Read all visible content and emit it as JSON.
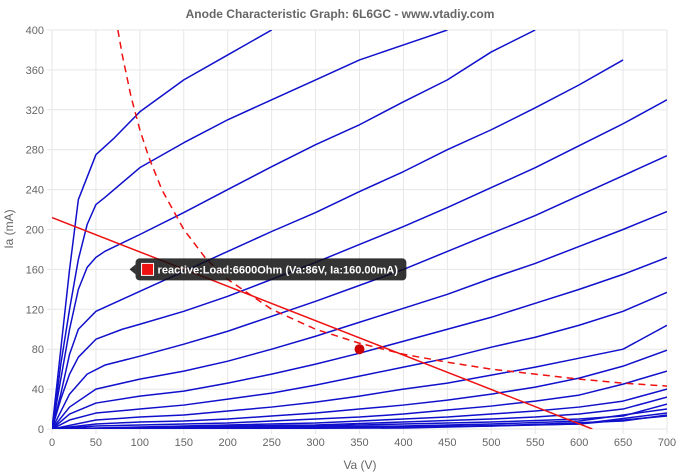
{
  "chart_data": {
    "type": "line",
    "title": "Anode Characteristic Graph: 6L6GC - www.vtadiy.com",
    "xlabel": "Va (V)",
    "ylabel": "Ia (mA)",
    "xlim": [
      0,
      700
    ],
    "ylim": [
      0,
      400
    ],
    "x_ticks": [
      0,
      50,
      100,
      150,
      200,
      250,
      300,
      350,
      400,
      450,
      500,
      550,
      600,
      650,
      700
    ],
    "y_ticks": [
      0,
      40,
      80,
      120,
      160,
      200,
      240,
      280,
      320,
      360,
      400
    ],
    "grid": true,
    "legend": "none",
    "colors": {
      "curves": "#1010cc",
      "load_line": "#ee1111",
      "dissipation": "#ee1111",
      "grid": "#e6e6e6",
      "tooltip_bg": "#111111",
      "marker": "#cc0000"
    },
    "grid_curves": [
      {
        "x": [
          0,
          5,
          10,
          20,
          30,
          50,
          70,
          100,
          150,
          200,
          250
        ],
        "y": [
          0,
          40,
          80,
          160,
          230,
          275,
          291,
          318,
          350,
          375,
          400
        ]
      },
      {
        "x": [
          0,
          5,
          10,
          20,
          30,
          40,
          50,
          60,
          100,
          150,
          200,
          250,
          300,
          350,
          400,
          450
        ],
        "y": [
          0,
          30,
          65,
          120,
          170,
          205,
          225,
          232,
          262,
          287,
          310,
          330,
          350,
          370,
          385,
          400
        ]
      },
      {
        "x": [
          0,
          10,
          20,
          30,
          40,
          50,
          60,
          100,
          150,
          200,
          250,
          300,
          350,
          400,
          450,
          500,
          550
        ],
        "y": [
          0,
          50,
          100,
          140,
          162,
          172,
          178,
          195,
          217,
          240,
          263,
          285,
          305,
          328,
          350,
          378,
          400
        ]
      },
      {
        "x": [
          0,
          10,
          20,
          30,
          50,
          80,
          100,
          150,
          200,
          250,
          300,
          350,
          400,
          450,
          500,
          550,
          600,
          650
        ],
        "y": [
          0,
          35,
          75,
          100,
          118,
          130,
          138,
          158,
          178,
          198,
          217,
          238,
          258,
          280,
          300,
          322,
          345,
          370
        ]
      },
      {
        "x": [
          0,
          10,
          20,
          30,
          50,
          80,
          100,
          150,
          200,
          250,
          300,
          350,
          400,
          450,
          500,
          550,
          600,
          650,
          700
        ],
        "y": [
          0,
          30,
          55,
          72,
          90,
          100,
          105,
          118,
          133,
          150,
          167,
          185,
          203,
          222,
          242,
          262,
          284,
          306,
          330
        ]
      },
      {
        "x": [
          0,
          20,
          40,
          60,
          100,
          150,
          200,
          250,
          300,
          350,
          400,
          450,
          500,
          550,
          600,
          650,
          700
        ],
        "y": [
          0,
          35,
          55,
          64,
          73,
          85,
          98,
          113,
          128,
          144,
          160,
          178,
          196,
          214,
          234,
          254,
          274
        ]
      },
      {
        "x": [
          0,
          20,
          50,
          100,
          150,
          200,
          250,
          300,
          350,
          400,
          450,
          500,
          550,
          600,
          650,
          700
        ],
        "y": [
          0,
          22,
          40,
          50,
          58,
          68,
          80,
          93,
          107,
          121,
          135,
          151,
          166,
          183,
          200,
          218
        ]
      },
      {
        "x": [
          0,
          20,
          50,
          100,
          150,
          200,
          250,
          300,
          350,
          400,
          450,
          500,
          550,
          600,
          650,
          700
        ],
        "y": [
          0,
          15,
          26,
          33,
          38,
          46,
          55,
          65,
          76,
          88,
          100,
          112,
          126,
          140,
          155,
          172
        ]
      },
      {
        "x": [
          0,
          20,
          50,
          100,
          150,
          200,
          250,
          300,
          350,
          400,
          450,
          500,
          550,
          600,
          650,
          700
        ],
        "y": [
          0,
          9,
          16,
          20,
          24,
          30,
          36,
          44,
          53,
          62,
          71,
          82,
          92,
          104,
          118,
          137
        ]
      },
      {
        "x": [
          0,
          50,
          100,
          150,
          200,
          250,
          300,
          350,
          400,
          450,
          500,
          550,
          600,
          650,
          700
        ],
        "y": [
          0,
          9,
          12,
          14,
          18,
          22,
          27,
          33,
          40,
          46,
          54,
          62,
          71,
          80,
          104
        ]
      },
      {
        "x": [
          0,
          50,
          100,
          150,
          200,
          250,
          300,
          350,
          400,
          450,
          500,
          550,
          600,
          650,
          700
        ],
        "y": [
          0,
          5,
          7,
          8,
          10,
          13,
          16,
          20,
          24,
          29,
          35,
          42,
          51,
          63,
          79
        ]
      },
      {
        "x": [
          0,
          50,
          100,
          150,
          200,
          250,
          300,
          350,
          400,
          450,
          500,
          550,
          600,
          650,
          700
        ],
        "y": [
          0,
          3,
          4,
          5,
          6,
          8,
          10,
          12,
          15,
          19,
          23,
          28,
          34,
          45,
          58
        ]
      },
      {
        "x": [
          0,
          100,
          200,
          300,
          400,
          450,
          500,
          550,
          600,
          650,
          700
        ],
        "y": [
          0,
          2,
          4,
          6,
          10,
          12,
          15,
          18,
          22,
          28,
          40
        ]
      },
      {
        "x": [
          0,
          100,
          200,
          300,
          400,
          500,
          550,
          600,
          650,
          700
        ],
        "y": [
          0,
          1,
          3,
          4,
          7,
          10,
          12,
          15,
          20,
          32
        ]
      },
      {
        "x": [
          0,
          100,
          200,
          300,
          400,
          500,
          600,
          650,
          700
        ],
        "y": [
          0,
          1,
          2,
          3,
          5,
          7,
          10,
          13,
          25
        ]
      },
      {
        "x": [
          0,
          100,
          200,
          300,
          400,
          500,
          600,
          700
        ],
        "y": [
          0,
          1,
          1,
          2,
          3,
          5,
          8,
          20
        ]
      },
      {
        "x": [
          0,
          200,
          400,
          600,
          700
        ],
        "y": [
          0,
          1,
          2,
          5,
          16
        ]
      },
      {
        "x": [
          0,
          300,
          500,
          650,
          700
        ],
        "y": [
          0,
          1,
          3,
          8,
          14
        ]
      },
      {
        "x": [
          0,
          400,
          600,
          700
        ],
        "y": [
          0,
          1,
          5,
          13
        ]
      }
    ],
    "load_line": {
      "x": [
        0,
        615
      ],
      "y": [
        212,
        0
      ]
    },
    "dissipation_curve": {
      "x": [
        75,
        80,
        90,
        100,
        110,
        125,
        150,
        175,
        200,
        250,
        300,
        350,
        400,
        450,
        500,
        550,
        600,
        650,
        700
      ],
      "y": [
        400,
        375,
        333,
        300,
        273,
        240,
        200,
        171,
        150,
        120,
        100,
        86,
        75,
        67,
        60,
        55,
        50,
        46,
        43
      ]
    },
    "operating_point": {
      "x": 350,
      "y": 80
    },
    "tooltip": {
      "text": "reactive:Load:6600Ohm (Va:86V, Ia:160.00mA)",
      "anchor_x": 86,
      "anchor_y": 160
    }
  }
}
